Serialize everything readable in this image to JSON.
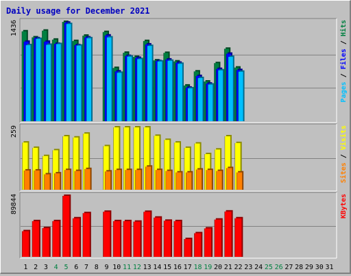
{
  "chart_data": [
    {
      "type": "bar",
      "title": "Daily usage for December 2021",
      "categories": [
        "1",
        "2",
        "3",
        "4",
        "5",
        "6",
        "7",
        "8",
        "9",
        "10",
        "11",
        "12",
        "13",
        "14",
        "15",
        "16",
        "17",
        "18",
        "19",
        "20",
        "21",
        "22",
        "23",
        "24",
        "25",
        "26",
        "27",
        "28",
        "29",
        "30",
        "31"
      ],
      "weekend_days": [
        "4",
        "5",
        "11",
        "12",
        "18",
        "19",
        "25",
        "26"
      ],
      "ylabel_parts": [
        "Pages",
        "Files",
        "Hits"
      ],
      "ymax_label": "1436",
      "ylim": [
        0,
        1436
      ],
      "series": [
        {
          "name": "Hits",
          "color": "#008040",
          "values": [
            1300,
            1213,
            1310,
            1180,
            1436,
            1160,
            1237,
            null,
            1290,
            770,
            990,
            930,
            1160,
            880,
            988,
            865,
            516,
            720,
            574,
            840,
            1048,
            776,
            null,
            null,
            null,
            null,
            null,
            null,
            null,
            null,
            null
          ]
        },
        {
          "name": "Files",
          "color": "#0000ff",
          "values": [
            1150,
            1200,
            1150,
            1120,
            1425,
            1100,
            1212,
            null,
            1240,
            720,
            944,
            916,
            1110,
            870,
            892,
            846,
            486,
            654,
            544,
            756,
            976,
            740,
            null,
            null,
            null,
            null,
            null,
            null,
            null,
            null,
            null
          ]
        },
        {
          "name": "Pages",
          "color": "#00c0ff",
          "values": [
            1100,
            1190,
            1105,
            1115,
            1405,
            1093,
            1200,
            null,
            1212,
            700,
            934,
            898,
            1088,
            864,
            874,
            830,
            476,
            624,
            530,
            736,
            930,
            716,
            null,
            null,
            null,
            null,
            null,
            null,
            null,
            null,
            null
          ]
        }
      ]
    },
    {
      "type": "bar",
      "categories": [
        "1",
        "2",
        "3",
        "4",
        "5",
        "6",
        "7",
        "8",
        "9",
        "10",
        "11",
        "12",
        "13",
        "14",
        "15",
        "16",
        "17",
        "18",
        "19",
        "20",
        "21",
        "22",
        "23",
        "24",
        "25",
        "26",
        "27",
        "28",
        "29",
        "30",
        "31"
      ],
      "ylabel_parts": [
        "Sites",
        "Visits"
      ],
      "ymax_label": "259",
      "ylim": [
        0,
        259
      ],
      "series": [
        {
          "name": "Visits",
          "color": "#ffff00",
          "values": [
            196,
            174,
            140,
            164,
            222,
            217,
            233,
            null,
            181,
            259,
            259,
            259,
            259,
            224,
            207,
            196,
            174,
            192,
            148,
            167,
            222,
            194,
            null,
            null,
            null,
            null,
            null,
            null,
            null,
            null,
            null
          ]
        },
        {
          "name": "Sites",
          "color": "#ff8000",
          "values": [
            80,
            80,
            64,
            68,
            82,
            78,
            86,
            null,
            76,
            82,
            82,
            82,
            96,
            82,
            78,
            72,
            72,
            84,
            82,
            78,
            90,
            72,
            null,
            null,
            null,
            null,
            null,
            null,
            null,
            null,
            null
          ]
        }
      ]
    },
    {
      "type": "bar",
      "categories": [
        "1",
        "2",
        "3",
        "4",
        "5",
        "6",
        "7",
        "8",
        "9",
        "10",
        "11",
        "12",
        "13",
        "14",
        "15",
        "16",
        "17",
        "18",
        "19",
        "20",
        "21",
        "22",
        "23",
        "24",
        "25",
        "26",
        "27",
        "28",
        "29",
        "30",
        "31"
      ],
      "ylabel_parts": [
        "KBytes"
      ],
      "ymax_label": "89844",
      "ylim": [
        0,
        89844
      ],
      "series": [
        {
          "name": "KBytes",
          "color": "#ff0000",
          "values": [
            37800,
            52600,
            42300,
            52600,
            89844,
            56800,
            64400,
            null,
            66400,
            52600,
            52600,
            51800,
            66300,
            57800,
            53200,
            52600,
            26200,
            34800,
            41900,
            54900,
            66800,
            56800,
            null,
            null,
            null,
            null,
            null,
            null,
            null,
            null,
            null
          ]
        }
      ]
    }
  ]
}
